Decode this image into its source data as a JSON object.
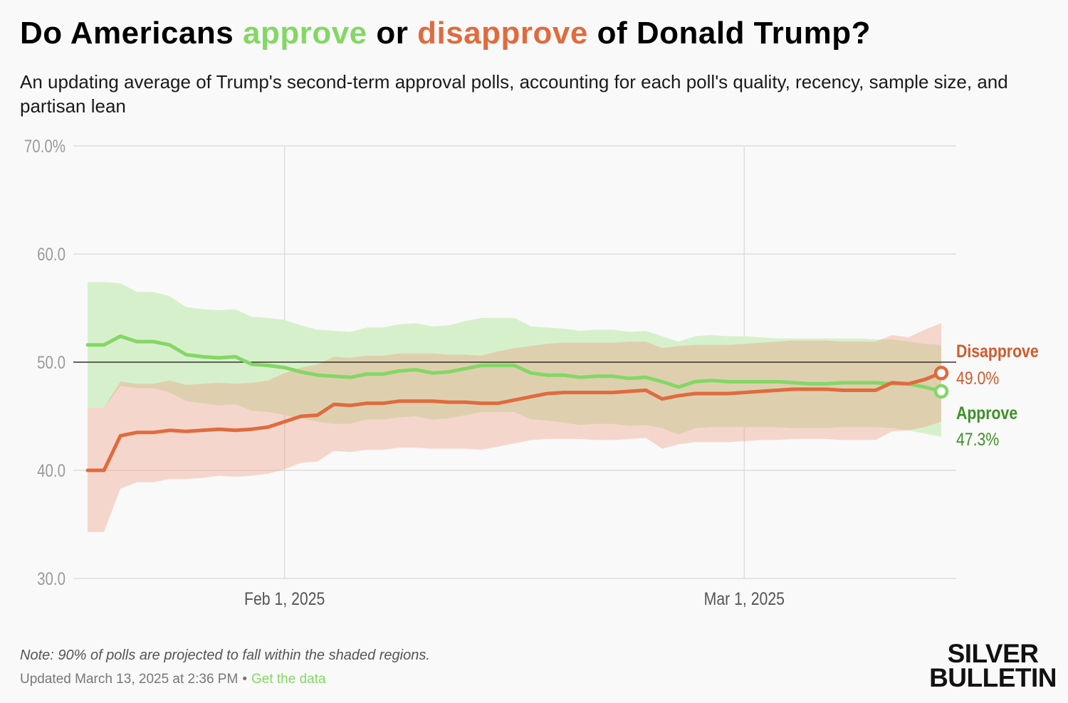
{
  "header": {
    "title_prefix": "Do Americans ",
    "title_approve": "approve",
    "title_middle": " or ",
    "title_disapprove": "disapprove",
    "title_suffix": " of Donald Trump?",
    "subtitle": "An updating average of Trump's second-term approval polls, accounting for each poll's quality, recency, sample size, and partisan lean"
  },
  "footer": {
    "note": "Note: 90% of polls are projected to fall within the shaded regions.",
    "updated": "Updated March 13, 2025 at 2:36 PM",
    "separator": "•",
    "data_link": "Get the data",
    "logo_line1": "SILVER",
    "logo_line2": "BULLETIN"
  },
  "colors": {
    "approve": "#84d765",
    "approve_label": "#3f8f2a",
    "approve_band": "#d6f0cc",
    "disapprove": "#e06b3e",
    "disapprove_label": "#cf5a2c",
    "disapprove_band": "rgba(238,150,120,0.35)"
  },
  "chart_data": {
    "type": "line",
    "title": "Do Americans approve or disapprove of Donald Trump?",
    "x_start": "2025-01-20",
    "x_end": "2025-03-13",
    "ylim": [
      30,
      70
    ],
    "yticks": [
      {
        "value": 70,
        "label": "70.0%"
      },
      {
        "value": 60,
        "label": "60.0"
      },
      {
        "value": 50,
        "label": "50.0"
      },
      {
        "value": 40,
        "label": "40.0"
      },
      {
        "value": 30,
        "label": "30.0"
      }
    ],
    "xticks": [
      {
        "date": "2025-02-01",
        "label": "Feb 1, 2025"
      },
      {
        "date": "2025-03-01",
        "label": "Mar 1, 2025"
      }
    ],
    "reference_line": 50,
    "grid": true,
    "x": [
      "2025-01-20",
      "2025-01-21",
      "2025-01-22",
      "2025-01-23",
      "2025-01-24",
      "2025-01-25",
      "2025-01-26",
      "2025-01-27",
      "2025-01-28",
      "2025-01-29",
      "2025-01-30",
      "2025-01-31",
      "2025-02-01",
      "2025-02-02",
      "2025-02-03",
      "2025-02-04",
      "2025-02-05",
      "2025-02-06",
      "2025-02-07",
      "2025-02-08",
      "2025-02-09",
      "2025-02-10",
      "2025-02-11",
      "2025-02-12",
      "2025-02-13",
      "2025-02-14",
      "2025-02-15",
      "2025-02-16",
      "2025-02-17",
      "2025-02-18",
      "2025-02-19",
      "2025-02-20",
      "2025-02-21",
      "2025-02-22",
      "2025-02-23",
      "2025-02-24",
      "2025-02-25",
      "2025-02-26",
      "2025-02-27",
      "2025-02-28",
      "2025-03-01",
      "2025-03-02",
      "2025-03-03",
      "2025-03-04",
      "2025-03-05",
      "2025-03-06",
      "2025-03-07",
      "2025-03-08",
      "2025-03-09",
      "2025-03-10",
      "2025-03-11",
      "2025-03-12",
      "2025-03-13"
    ],
    "series": [
      {
        "name": "Disapprove",
        "color": "#e06b3e",
        "last_label": "49.0%",
        "values": [
          40.0,
          40.0,
          43.2,
          43.5,
          43.5,
          43.7,
          43.6,
          43.7,
          43.8,
          43.7,
          43.8,
          44.0,
          44.5,
          45.0,
          45.1,
          46.1,
          46.0,
          46.2,
          46.2,
          46.4,
          46.4,
          46.4,
          46.3,
          46.3,
          46.2,
          46.2,
          46.5,
          46.8,
          47.1,
          47.2,
          47.2,
          47.2,
          47.2,
          47.3,
          47.4,
          46.6,
          46.9,
          47.1,
          47.1,
          47.1,
          47.2,
          47.3,
          47.4,
          47.5,
          47.5,
          47.5,
          47.4,
          47.4,
          47.4,
          48.1,
          48.0,
          48.4,
          49.0
        ],
        "upper": [
          45.8,
          45.8,
          48.2,
          48.0,
          48.0,
          48.3,
          47.9,
          48.0,
          48.1,
          48.0,
          48.1,
          48.3,
          49.0,
          49.5,
          49.8,
          50.5,
          50.4,
          50.6,
          50.6,
          50.8,
          50.8,
          50.8,
          50.7,
          50.7,
          50.6,
          51.0,
          51.3,
          51.5,
          51.7,
          51.8,
          51.8,
          51.8,
          51.8,
          51.9,
          51.9,
          51.3,
          51.5,
          51.6,
          51.6,
          51.6,
          51.7,
          51.8,
          51.9,
          52.0,
          52.0,
          52.0,
          51.9,
          51.9,
          51.9,
          52.5,
          52.3,
          53.0,
          53.6
        ],
        "lower": [
          34.3,
          34.3,
          38.3,
          38.9,
          38.9,
          39.2,
          39.2,
          39.3,
          39.5,
          39.4,
          39.5,
          39.7,
          40.1,
          40.7,
          40.8,
          41.8,
          41.7,
          41.9,
          41.9,
          42.1,
          42.1,
          42.0,
          42.0,
          42.0,
          41.9,
          42.2,
          42.5,
          42.8,
          42.9,
          42.9,
          42.9,
          42.8,
          42.8,
          42.9,
          43.0,
          42.0,
          42.4,
          42.6,
          42.6,
          42.6,
          42.7,
          42.8,
          42.8,
          42.9,
          42.9,
          42.9,
          42.8,
          42.8,
          42.8,
          43.6,
          43.7,
          44.0,
          44.5
        ]
      },
      {
        "name": "Approve",
        "color": "#84d765",
        "last_label": "47.3%",
        "values": [
          51.6,
          51.6,
          52.4,
          51.9,
          51.9,
          51.6,
          50.7,
          50.5,
          50.4,
          50.5,
          49.8,
          49.7,
          49.5,
          49.1,
          48.8,
          48.7,
          48.6,
          48.9,
          48.9,
          49.2,
          49.3,
          49.0,
          49.1,
          49.4,
          49.7,
          49.7,
          49.7,
          49.0,
          48.8,
          48.8,
          48.6,
          48.7,
          48.7,
          48.5,
          48.6,
          48.2,
          47.7,
          48.2,
          48.3,
          48.2,
          48.2,
          48.2,
          48.2,
          48.1,
          48.0,
          48.0,
          48.1,
          48.1,
          48.1,
          48.0,
          48.0,
          47.7,
          47.3
        ]
      }
    ],
    "approve_band": {
      "upper": [
        57.4,
        57.4,
        57.3,
        56.5,
        56.5,
        56.1,
        55.1,
        54.9,
        54.8,
        54.9,
        54.2,
        54.1,
        53.9,
        53.4,
        53.0,
        52.9,
        52.8,
        53.2,
        53.2,
        53.5,
        53.6,
        53.3,
        53.4,
        53.8,
        54.1,
        54.1,
        54.1,
        53.3,
        53.2,
        53.1,
        52.9,
        53.0,
        53.0,
        52.8,
        52.9,
        52.4,
        51.9,
        52.4,
        52.5,
        52.4,
        52.4,
        52.3,
        52.2,
        52.2,
        52.2,
        52.2,
        52.2,
        52.2,
        52.1,
        52.1,
        51.9,
        51.7,
        51.6
      ],
      "lower": [
        45.8,
        45.8,
        47.8,
        47.6,
        47.6,
        47.2,
        46.4,
        46.2,
        46.0,
        46.1,
        45.5,
        45.4,
        45.1,
        44.8,
        44.5,
        44.3,
        44.3,
        44.7,
        44.7,
        44.9,
        45.0,
        44.7,
        44.8,
        45.1,
        45.4,
        45.4,
        45.4,
        44.7,
        44.6,
        44.4,
        44.2,
        44.3,
        44.3,
        44.1,
        44.2,
        43.9,
        43.3,
        43.9,
        44.0,
        44.0,
        44.0,
        44.0,
        44.0,
        43.9,
        43.9,
        43.9,
        44.0,
        44.0,
        44.0,
        43.9,
        43.7,
        43.4,
        43.1
      ]
    },
    "labels": {
      "disapprove": "Disapprove",
      "approve": "Approve"
    }
  }
}
